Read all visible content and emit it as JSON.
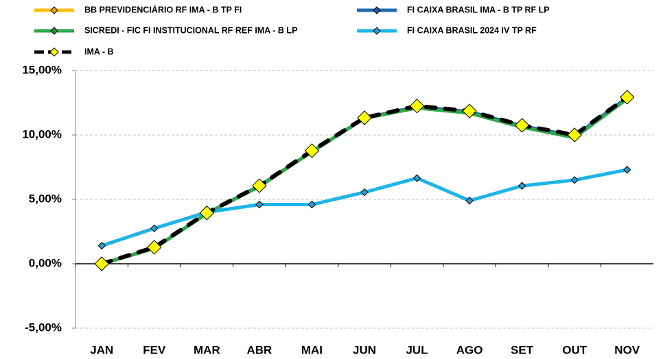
{
  "chart_data": {
    "type": "line",
    "categories": [
      "JAN",
      "FEV",
      "MAR",
      "ABR",
      "MAI",
      "JUN",
      "JUL",
      "AGO",
      "SET",
      "OUT",
      "NOV"
    ],
    "series": [
      {
        "name": "BB PREVIDENCIÁRIO RF IMA - B TP FI",
        "color": "#FFC000",
        "marker_color": "#F7A51C",
        "values": [
          0,
          1.2,
          3.9,
          6.0,
          8.7,
          11.3,
          12.1,
          11.7,
          10.65,
          9.85,
          12.85
        ]
      },
      {
        "name": "FI CAIXA BRASIL IMA - B TP RF LP",
        "color": "#1F6DB0",
        "marker_color": "#2F5597",
        "values": [
          0,
          1.2,
          3.9,
          6.05,
          8.7,
          11.3,
          12.2,
          11.8,
          10.7,
          9.9,
          12.9
        ]
      },
      {
        "name": "SICREDI - FIC FI INSTITUCIONAL RF REF IMA - B LP",
        "color": "#2EA84A",
        "marker_color": "#2E8B3A",
        "values": [
          0,
          1.2,
          3.9,
          6.0,
          8.7,
          11.3,
          12.1,
          11.7,
          10.6,
          9.8,
          12.8
        ]
      },
      {
        "name": "FI CAIXA BRASIL 2024 IV TP RF",
        "color": "#1EB4E8",
        "marker_color": "#2E9CCB",
        "values": [
          1.4,
          2.75,
          4.0,
          4.6,
          4.6,
          5.55,
          6.65,
          4.9,
          6.05,
          6.5,
          7.3
        ]
      },
      {
        "name": "IMA - B",
        "color": "#000000",
        "marker_color": "#FFFF00",
        "dashed": true,
        "values": [
          0,
          1.28,
          3.95,
          6.06,
          8.78,
          11.33,
          12.25,
          11.86,
          10.75,
          10.0,
          12.93
        ]
      }
    ],
    "ylim": [
      -5,
      15
    ],
    "yticks": [
      {
        "value": -5,
        "label": "-5,00%"
      },
      {
        "value": 0,
        "label": "0,00%"
      },
      {
        "value": 5,
        "label": "5,00%"
      },
      {
        "value": 10,
        "label": "10,00%"
      },
      {
        "value": 15,
        "label": "15,00%"
      }
    ],
    "grid": true,
    "legend": "top"
  }
}
